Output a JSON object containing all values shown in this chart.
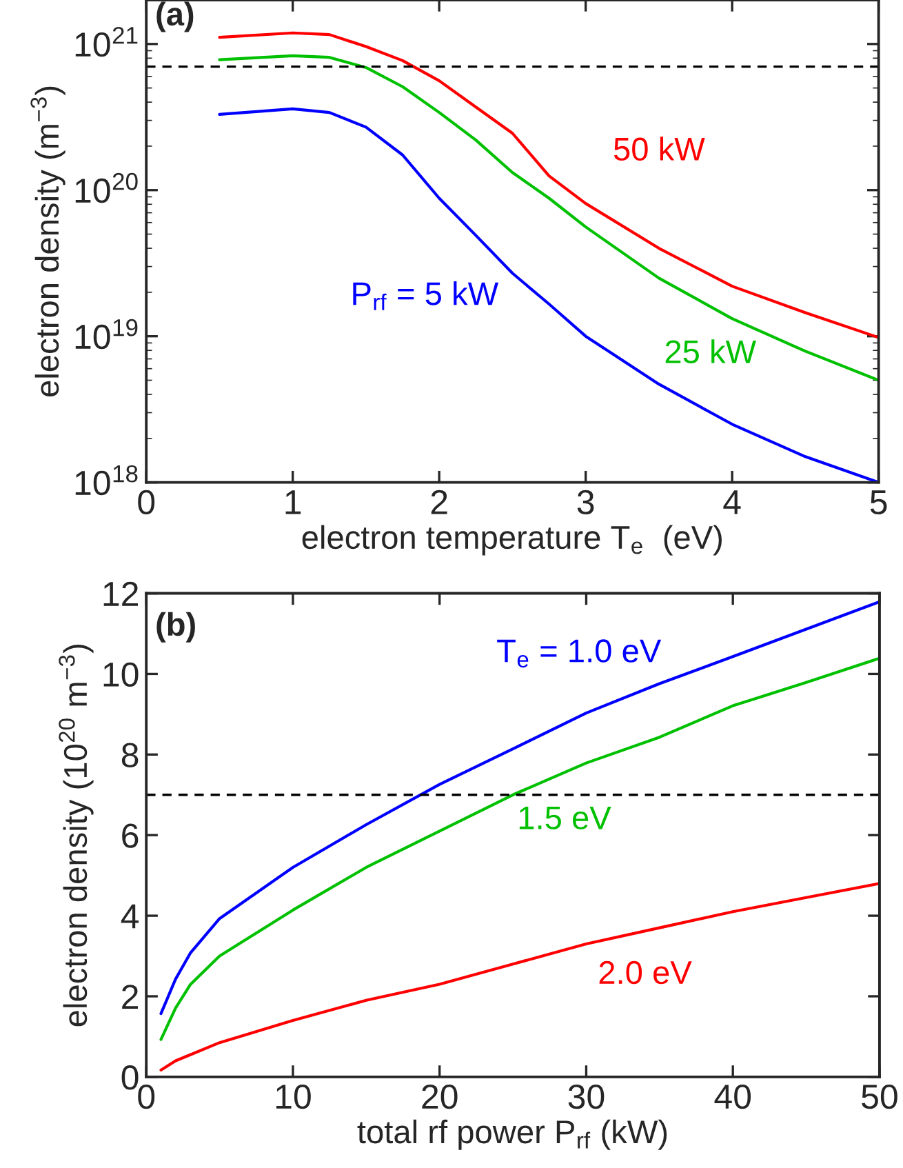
{
  "chart_data": [
    {
      "type": "line",
      "xlabel": "electron temperature T$_{e}$  (eV)",
      "ylabel": "electron density (m$^{−3}$)",
      "log": "y",
      "xlim": [
        0,
        5
      ],
      "ylim": [
        1e+18,
        2e+21
      ],
      "xticks": [
        0,
        1,
        2,
        3,
        4,
        5
      ],
      "yticks": [
        {
          "value": 1e+18,
          "label": "10$^{18}$"
        },
        {
          "value": 1e+19,
          "label": "10$^{19}$"
        },
        {
          "value": 1e+20,
          "label": "10$^{20}$"
        },
        {
          "value": 1e+21,
          "label": "10$^{21}$"
        }
      ],
      "x": [
        0.5,
        1.0,
        1.25,
        1.5,
        1.75,
        2.0,
        2.25,
        2.5,
        2.75,
        3.0,
        3.5,
        4.0,
        4.5,
        5.0
      ],
      "series": [
        {
          "name": "50 kW",
          "color": "#ff0000",
          "values": [
            1.11e+21,
            1.19e+21,
            1.16e+21,
            9.6e+20,
            7.7e+20,
            5.6e+20,
            3.7e+20,
            2.45e+20,
            1.25e+20,
            8.1e+19,
            4e+19,
            2.2e+19,
            1.45e+19,
            9.8e+18
          ]
        },
        {
          "name": "25 kW",
          "color": "#00c000",
          "values": [
            7.8e+20,
            8.3e+20,
            8.1e+20,
            6.9e+20,
            5.1e+20,
            3.4e+20,
            2.2e+20,
            1.32e+20,
            8.8e+19,
            5.6e+19,
            2.5e+19,
            1.32e+19,
            7.9e+18,
            5e+18
          ]
        },
        {
          "name": "P$_{rf}$ = 5 kW",
          "color": "#0000ff",
          "values": [
            3.3e+20,
            3.6e+20,
            3.4e+20,
            2.7e+20,
            1.74e+20,
            8.8e+19,
            4.9e+19,
            2.7e+19,
            1.66e+19,
            1e+19,
            4.7e+18,
            2.5e+18,
            1.5e+18,
            1e+18
          ]
        }
      ],
      "ref_lines": [
        {
          "axis": "y",
          "value": 7e+20,
          "color": "#000000",
          "line_style": "dashed"
        }
      ],
      "annotations": [
        "(a)"
      ]
    },
    {
      "type": "line",
      "xlabel": "total rf power P$_{rf}$ (kW)",
      "ylabel": "electron density (10$^{20}$ m$^{−3}$)",
      "xlim": [
        0,
        50
      ],
      "ylim": [
        0,
        12
      ],
      "xticks": [
        0,
        10,
        20,
        30,
        40,
        50
      ],
      "yticks": [
        0,
        2,
        4,
        6,
        8,
        10,
        12
      ],
      "x": [
        1,
        2,
        3,
        5,
        10,
        15,
        20,
        25,
        30,
        35,
        40,
        45,
        50
      ],
      "series": [
        {
          "name": "T$_{e}$ = 1.0 eV",
          "color": "#0000ff",
          "values": [
            1.57,
            2.43,
            3.07,
            3.93,
            5.2,
            6.26,
            7.26,
            8.14,
            9.03,
            9.76,
            10.43,
            11.11,
            11.79
          ]
        },
        {
          "name": "1.5 eV",
          "color": "#00c000",
          "values": [
            0.93,
            1.71,
            2.29,
            3.0,
            4.14,
            5.2,
            6.1,
            7.0,
            7.79,
            8.43,
            9.21,
            9.79,
            10.39
          ]
        },
        {
          "name": "2.0 eV",
          "color": "#ff0000",
          "values": [
            0.17,
            0.4,
            0.55,
            0.85,
            1.4,
            1.9,
            2.3,
            2.8,
            3.3,
            3.7,
            4.1,
            4.45,
            4.8
          ]
        }
      ],
      "ref_lines": [
        {
          "axis": "y",
          "value": 7,
          "color": "#000000",
          "line_style": "dashed"
        }
      ],
      "annotations": [
        "(b)"
      ]
    }
  ]
}
